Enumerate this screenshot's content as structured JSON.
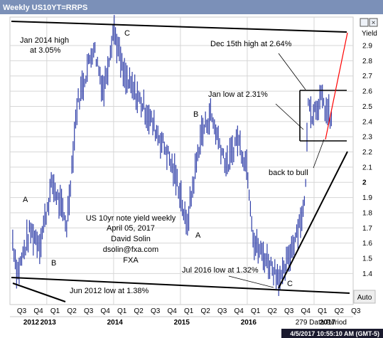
{
  "window": {
    "title": "Weekly US10YT=RRPS",
    "axis_unit": "Yield",
    "auto_button": "Auto",
    "data_period": "279 Data Period",
    "timestamp": "4/5/2017 10:55:10 AM (GMT-5)"
  },
  "chart_data": {
    "type": "bar",
    "ylabel": "Yield",
    "ylim": [
      1.28,
      3.05
    ],
    "y_ticks": [
      1.4,
      1.5,
      1.6,
      1.7,
      1.8,
      1.9,
      2,
      2.1,
      2.2,
      2.3,
      2.4,
      2.5,
      2.6,
      2.7,
      2.8,
      2.9
    ],
    "y_tick_labels": [
      "1.4",
      "1.5",
      "1.6",
      "1.7",
      "1.8",
      "1.9",
      "2",
      "2.1",
      "2.2",
      "2.3",
      "2.4",
      "2.5",
      "2.6",
      "2.7",
      "2.8",
      "2.9"
    ],
    "quarter_labels": [
      "Q3",
      "Q4",
      "Q1",
      "Q2",
      "Q3",
      "Q4",
      "Q1",
      "Q2",
      "Q3",
      "Q4",
      "Q1",
      "Q2",
      "Q3",
      "Q4",
      "Q1",
      "Q2",
      "Q3",
      "Q4",
      "Q1",
      "Q2",
      "Q3"
    ],
    "year_labels": [
      "2012",
      "2013",
      "2014",
      "2015",
      "2016",
      "2017"
    ],
    "series": [
      {
        "waypoints": [
          [
            2012.49,
            1.62
          ],
          [
            2012.56,
            1.4
          ],
          [
            2012.75,
            1.68
          ],
          [
            2012.9,
            1.6
          ],
          [
            2013.08,
            2.0
          ],
          [
            2013.3,
            1.72
          ],
          [
            2013.45,
            2.5
          ],
          [
            2013.7,
            2.9
          ],
          [
            2013.85,
            2.6
          ],
          [
            2014.0,
            3.02
          ],
          [
            2014.15,
            2.7
          ],
          [
            2014.45,
            2.5
          ],
          [
            2014.8,
            2.2
          ],
          [
            2014.99,
            1.95
          ],
          [
            2015.09,
            1.7
          ],
          [
            2015.3,
            2.3
          ],
          [
            2015.45,
            2.45
          ],
          [
            2015.7,
            2.1
          ],
          [
            2015.85,
            2.3
          ],
          [
            2016.0,
            2.1
          ],
          [
            2016.1,
            1.6
          ],
          [
            2016.52,
            1.36
          ],
          [
            2016.7,
            1.62
          ],
          [
            2016.86,
            1.85
          ],
          [
            2016.92,
            2.6
          ],
          [
            2016.96,
            2.45
          ],
          [
            2017.1,
            2.55
          ],
          [
            2017.26,
            2.4
          ]
        ]
      }
    ],
    "annotations": {
      "jan2014": "Jan 2014 high\nat 3.05%",
      "dec15": "Dec 15th high at 2.64%",
      "janlow": "Jan low at 2.31%",
      "back_to_bull": "back to bull",
      "jul2016": "Jul 2016 low at 1.32%",
      "jun2012": "Jun 2012 low at 1.38%",
      "wave_a1": "A",
      "wave_b1": "B",
      "wave_c1": "C",
      "wave_b2": "B",
      "wave_a2": "A",
      "wave_c2": "C"
    },
    "caption": [
      "US 10yr note yield weekly",
      "April 05, 2017",
      "David Solin",
      "dsolin@fxa.com",
      "FXA"
    ]
  }
}
